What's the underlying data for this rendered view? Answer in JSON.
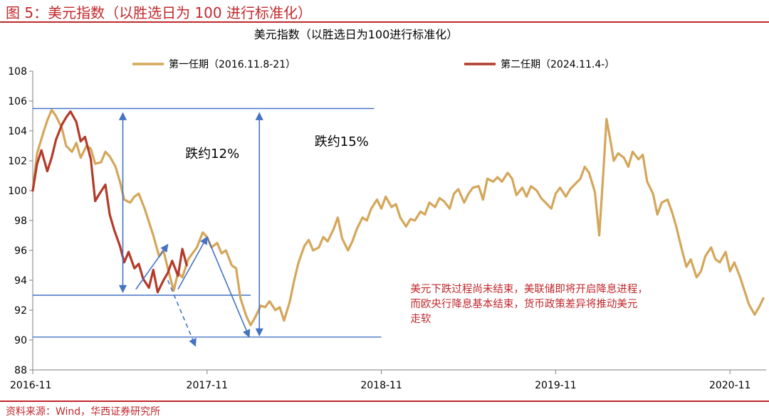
{
  "figure": {
    "label": "图 5：美元指数（以胜选日为 100 进行标准化）",
    "source": "资料来源：Wind，华西证券研究所"
  },
  "chart_data": {
    "type": "line",
    "title": "美元指数（以胜选日为100进行标准化）",
    "xlabel": "",
    "ylabel": "",
    "ylim": [
      88,
      108
    ],
    "yticks": [
      88,
      90,
      92,
      94,
      96,
      98,
      100,
      102,
      104,
      106,
      108
    ],
    "x_tick_labels": [
      "2016-11",
      "2017-11",
      "2018-11",
      "2019-11",
      "2020-11"
    ],
    "x_unit": "months since 2016-11",
    "xlim": [
      0,
      50.5
    ],
    "legend": {
      "position": "top"
    },
    "series": [
      {
        "name": "第一任期（2016.11.8-21）",
        "color": "#d4a65a",
        "points": [
          [
            0,
            100
          ],
          [
            0.3,
            102.5
          ],
          [
            0.7,
            103.8
          ],
          [
            1.0,
            104.7
          ],
          [
            1.3,
            105.4
          ],
          [
            1.6,
            105.0
          ],
          [
            2.0,
            104.2
          ],
          [
            2.3,
            103.0
          ],
          [
            2.7,
            102.6
          ],
          [
            3.0,
            103.2
          ],
          [
            3.3,
            102.2
          ],
          [
            3.7,
            103.0
          ],
          [
            4.0,
            102.8
          ],
          [
            4.3,
            101.8
          ],
          [
            4.7,
            101.9
          ],
          [
            5.0,
            102.6
          ],
          [
            5.3,
            102.3
          ],
          [
            5.7,
            101.6
          ],
          [
            6.0,
            100.6
          ],
          [
            6.3,
            99.4
          ],
          [
            6.7,
            99.2
          ],
          [
            7.0,
            99.6
          ],
          [
            7.3,
            99.8
          ],
          [
            7.7,
            98.8
          ],
          [
            8.0,
            97.9
          ],
          [
            8.3,
            97.0
          ],
          [
            8.7,
            95.6
          ],
          [
            9.0,
            96.0
          ],
          [
            9.3,
            94.8
          ],
          [
            9.7,
            93.3
          ],
          [
            10.0,
            94.5
          ],
          [
            10.3,
            94.2
          ],
          [
            10.7,
            95.4
          ],
          [
            11.0,
            95.8
          ],
          [
            11.3,
            96.2
          ],
          [
            11.7,
            97.2
          ],
          [
            12.0,
            96.9
          ],
          [
            12.3,
            96.2
          ],
          [
            12.7,
            96.5
          ],
          [
            13.0,
            95.8
          ],
          [
            13.3,
            96.0
          ],
          [
            13.7,
            95.0
          ],
          [
            14.0,
            94.8
          ],
          [
            14.3,
            92.8
          ],
          [
            14.7,
            91.6
          ],
          [
            15.0,
            91.0
          ],
          [
            15.3,
            91.5
          ],
          [
            15.7,
            92.3
          ],
          [
            16.0,
            92.2
          ],
          [
            16.3,
            92.6
          ],
          [
            16.7,
            92.0
          ],
          [
            17.0,
            92.2
          ],
          [
            17.3,
            91.3
          ],
          [
            17.7,
            92.6
          ],
          [
            18.0,
            94.0
          ],
          [
            18.3,
            95.2
          ],
          [
            18.7,
            96.3
          ],
          [
            19.0,
            96.7
          ],
          [
            19.3,
            96.0
          ],
          [
            19.7,
            96.2
          ],
          [
            20.0,
            96.9
          ],
          [
            20.3,
            96.6
          ],
          [
            20.7,
            97.4
          ],
          [
            21.0,
            98.2
          ],
          [
            21.3,
            96.8
          ],
          [
            21.7,
            96.0
          ],
          [
            22.0,
            96.6
          ],
          [
            22.3,
            97.4
          ],
          [
            22.7,
            98.2
          ],
          [
            23.0,
            98.0
          ],
          [
            23.3,
            98.8
          ],
          [
            23.7,
            99.4
          ],
          [
            24.0,
            98.8
          ],
          [
            24.3,
            99.6
          ],
          [
            24.7,
            98.9
          ],
          [
            25.0,
            99.1
          ],
          [
            25.3,
            98.2
          ],
          [
            25.7,
            97.6
          ],
          [
            26.0,
            98.1
          ],
          [
            26.3,
            98.0
          ],
          [
            26.7,
            98.6
          ],
          [
            27.0,
            98.4
          ],
          [
            27.3,
            99.2
          ],
          [
            27.7,
            98.9
          ],
          [
            28.0,
            99.5
          ],
          [
            28.3,
            99.3
          ],
          [
            28.7,
            98.8
          ],
          [
            29.0,
            99.8
          ],
          [
            29.3,
            100.1
          ],
          [
            29.7,
            99.2
          ],
          [
            30.0,
            99.8
          ],
          [
            30.3,
            100.2
          ],
          [
            30.7,
            100.3
          ],
          [
            31.0,
            99.4
          ],
          [
            31.3,
            100.8
          ],
          [
            31.7,
            100.6
          ],
          [
            32.0,
            100.9
          ],
          [
            32.3,
            100.6
          ],
          [
            32.7,
            101.2
          ],
          [
            33.0,
            100.8
          ],
          [
            33.3,
            99.7
          ],
          [
            33.7,
            100.2
          ],
          [
            34.0,
            99.6
          ],
          [
            34.3,
            100.3
          ],
          [
            34.7,
            100.0
          ],
          [
            35.0,
            99.5
          ],
          [
            35.3,
            99.2
          ],
          [
            35.7,
            98.8
          ],
          [
            36.0,
            99.8
          ],
          [
            36.3,
            100.2
          ],
          [
            36.7,
            99.6
          ],
          [
            37.0,
            100.1
          ],
          [
            37.3,
            100.4
          ],
          [
            37.7,
            100.8
          ],
          [
            38.0,
            101.6
          ],
          [
            38.3,
            101.2
          ],
          [
            38.7,
            99.9
          ],
          [
            39.0,
            97.0
          ],
          [
            39.3,
            101.5
          ],
          [
            39.5,
            104.8
          ],
          [
            39.8,
            103.2
          ],
          [
            40.0,
            102.0
          ],
          [
            40.3,
            102.5
          ],
          [
            40.7,
            102.2
          ],
          [
            41.0,
            101.6
          ],
          [
            41.3,
            102.6
          ],
          [
            41.7,
            102.1
          ],
          [
            42.0,
            102.4
          ],
          [
            42.3,
            100.6
          ],
          [
            42.7,
            99.8
          ],
          [
            43.0,
            98.4
          ],
          [
            43.3,
            99.2
          ],
          [
            43.7,
            99.4
          ],
          [
            44.0,
            98.6
          ],
          [
            44.3,
            97.6
          ],
          [
            44.7,
            96.0
          ],
          [
            45.0,
            94.9
          ],
          [
            45.3,
            95.4
          ],
          [
            45.7,
            94.2
          ],
          [
            46.0,
            94.6
          ],
          [
            46.3,
            95.6
          ],
          [
            46.7,
            96.2
          ],
          [
            47.0,
            95.4
          ],
          [
            47.3,
            95.2
          ],
          [
            47.7,
            95.9
          ],
          [
            48.0,
            94.6
          ],
          [
            48.3,
            95.2
          ],
          [
            48.7,
            94.2
          ],
          [
            49.0,
            93.3
          ],
          [
            49.3,
            92.4
          ],
          [
            49.7,
            91.7
          ],
          [
            50.0,
            92.2
          ],
          [
            50.3,
            92.8
          ]
        ]
      },
      {
        "name": "第二任期（2024.11.4-）",
        "color": "#b33a2a",
        "points": [
          [
            0,
            100
          ],
          [
            0.3,
            101.8
          ],
          [
            0.6,
            102.7
          ],
          [
            1.0,
            101.3
          ],
          [
            1.3,
            102.2
          ],
          [
            1.6,
            103.4
          ],
          [
            2.0,
            104.4
          ],
          [
            2.3,
            104.9
          ],
          [
            2.6,
            105.3
          ],
          [
            3.0,
            104.6
          ],
          [
            3.3,
            103.3
          ],
          [
            3.6,
            103.6
          ],
          [
            4.0,
            102.1
          ],
          [
            4.3,
            99.3
          ],
          [
            4.6,
            99.8
          ],
          [
            5.0,
            100.4
          ],
          [
            5.3,
            98.4
          ],
          [
            5.6,
            97.4
          ],
          [
            6.0,
            96.3
          ],
          [
            6.3,
            95.2
          ],
          [
            6.6,
            95.9
          ],
          [
            7.0,
            94.8
          ],
          [
            7.3,
            95.1
          ],
          [
            7.6,
            94.1
          ],
          [
            8.0,
            93.5
          ],
          [
            8.3,
            94.7
          ],
          [
            8.6,
            93.2
          ],
          [
            9.0,
            94.0
          ],
          [
            9.3,
            94.5
          ],
          [
            9.6,
            95.3
          ],
          [
            10.0,
            94.3
          ],
          [
            10.3,
            96.1
          ],
          [
            10.6,
            95.0
          ]
        ]
      }
    ],
    "reference_lines": [
      {
        "kind": "horizontal",
        "y": 105.5,
        "x_range": [
          0,
          23.5
        ]
      },
      {
        "kind": "horizontal",
        "y": 93.0,
        "x_range": [
          0,
          15.0
        ]
      },
      {
        "kind": "horizontal",
        "y": 90.2,
        "x_range": [
          0,
          24.0
        ]
      }
    ],
    "annotations": [
      {
        "text": "跌约12%",
        "x": 10.5,
        "y": 102.2,
        "color": "#000000"
      },
      {
        "text": "跌约15%",
        "x": 19.4,
        "y": 103.0,
        "color": "#000000"
      },
      {
        "text": "美元下跌过程尚未结束，美联储即将开启降息进程，",
        "x": 26,
        "y": 93.2,
        "color": "#c0282c"
      },
      {
        "text": "而欧央行降息基本结束，货币政策差异将推动美元",
        "x": 26,
        "y": 92.2,
        "color": "#c0282c"
      },
      {
        "text": "走软",
        "x": 26,
        "y": 91.2,
        "color": "#c0282c"
      }
    ],
    "arrows": [
      {
        "from": [
          6.2,
          105.2
        ],
        "to": [
          6.2,
          93.2
        ],
        "double": true,
        "dashed": false
      },
      {
        "from": [
          15.6,
          105.2
        ],
        "to": [
          15.6,
          90.3
        ],
        "double": true,
        "dashed": false
      },
      {
        "from": [
          7.1,
          93.4
        ],
        "to": [
          9.3,
          96.4
        ],
        "double": false,
        "dashed": false
      },
      {
        "from": [
          9.3,
          94.0
        ],
        "to": [
          11.2,
          89.6
        ],
        "double": false,
        "dashed": true
      },
      {
        "from": [
          10.0,
          93.4
        ],
        "to": [
          12.0,
          96.9
        ],
        "double": false,
        "dashed": false
      },
      {
        "from": [
          12.0,
          96.9
        ],
        "to": [
          14.9,
          90.2
        ],
        "double": false,
        "dashed": false
      }
    ]
  }
}
